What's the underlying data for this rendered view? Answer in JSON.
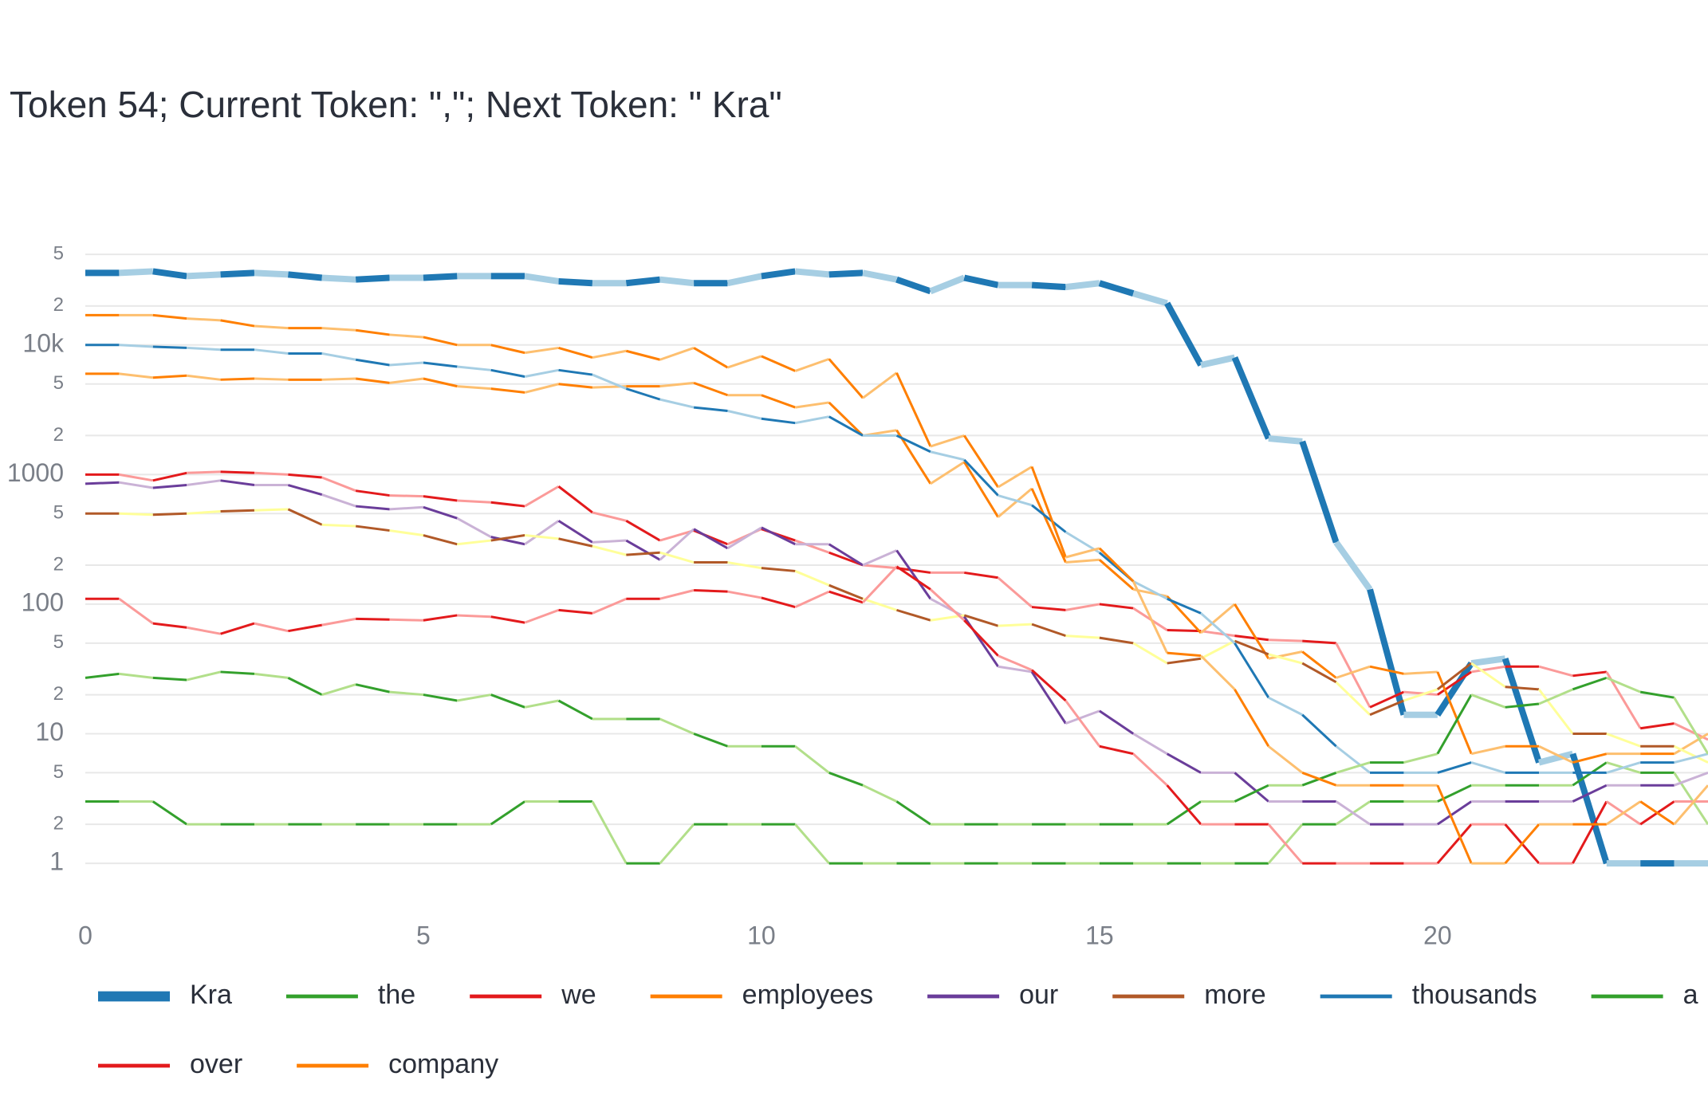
{
  "chart_data": {
    "type": "line",
    "title": "Token 54; Current Token: \",\"; Next Token: \" Kra\"",
    "x": [
      0,
      0.5,
      1,
      1.5,
      2,
      2.5,
      3,
      3.5,
      4,
      4.5,
      5,
      5.5,
      6,
      6.5,
      7,
      7.5,
      8,
      8.5,
      9,
      9.5,
      10,
      10.5,
      11,
      11.5,
      12,
      12.5,
      13,
      13.5,
      14,
      14.5,
      15,
      15.5,
      16,
      16.5,
      17,
      17.5,
      18,
      18.5,
      19,
      19.5,
      20,
      20.5,
      21,
      21.5,
      22,
      22.5,
      23,
      23.5,
      24
    ],
    "xlim": [
      0,
      24
    ],
    "xticks": [
      0,
      5,
      10,
      15,
      20
    ],
    "log_y": true,
    "ylim": [
      0.5,
      80000
    ],
    "yticks": [
      1,
      2,
      5,
      10,
      {
        "value": 20,
        "label": "2"
      },
      {
        "value": 50,
        "label": "5"
      },
      100,
      {
        "value": 200,
        "label": "2"
      },
      {
        "value": 500,
        "label": "5"
      },
      1000,
      {
        "value": 2000,
        "label": "2"
      },
      {
        "value": 5000,
        "label": "5"
      },
      {
        "value": 10000,
        "label": "10k"
      },
      {
        "value": 20000,
        "label": "2"
      },
      {
        "value": 50000,
        "label": "5"
      }
    ],
    "grid": true,
    "series": [
      {
        "name": "Kra",
        "colors": [
          "#1f78b4",
          "#a6cee3"
        ],
        "width": 8,
        "values": [
          36000,
          36000,
          37000,
          34000,
          35000,
          36000,
          35000,
          33000,
          32000,
          33000,
          33000,
          34000,
          34000,
          34000,
          31000,
          30000,
          30000,
          32000,
          30000,
          30000,
          34000,
          37000,
          35000,
          36000,
          32000,
          26000,
          33000,
          29000,
          29000,
          28000,
          30000,
          25000,
          21000,
          7000,
          8000,
          1900,
          1800,
          300,
          130,
          14,
          14,
          35,
          38,
          6,
          7,
          1,
          1,
          1,
          1
        ]
      },
      {
        "name": "the",
        "colors": [
          "#33a02c",
          "#b2df8a"
        ],
        "width": 3,
        "values": [
          3,
          3,
          3,
          2,
          2,
          2,
          2,
          2,
          2,
          2,
          2,
          2,
          2,
          3,
          3,
          3,
          1,
          1,
          2,
          2,
          2,
          2,
          1,
          1,
          1,
          1,
          1,
          1,
          1,
          1,
          1,
          1,
          1,
          1,
          1,
          1,
          2,
          2,
          3,
          3,
          3,
          4,
          4,
          4,
          4,
          6,
          5,
          5,
          2
        ]
      },
      {
        "name": "we",
        "colors": [
          "#e31a1c",
          "#fb9a99"
        ],
        "width": 3,
        "values": [
          1000,
          1000,
          900,
          1030,
          1050,
          1030,
          1000,
          950,
          750,
          690,
          680,
          630,
          610,
          570,
          810,
          510,
          440,
          310,
          370,
          290,
          380,
          310,
          250,
          200,
          190,
          175,
          175,
          160,
          95,
          90,
          100,
          93,
          63,
          62,
          57,
          53,
          52,
          50,
          16,
          21,
          20,
          30,
          33,
          33,
          28,
          30,
          11,
          12,
          9
        ]
      },
      {
        "name": "employees",
        "colors": [
          "#ff7f00",
          "#fdbf6f"
        ],
        "width": 3,
        "values": [
          6000,
          6000,
          5600,
          5800,
          5400,
          5500,
          5400,
          5400,
          5500,
          5100,
          5500,
          4800,
          4600,
          4300,
          5000,
          4700,
          4800,
          4800,
          5100,
          4100,
          4100,
          3300,
          3600,
          2000,
          2200,
          850,
          1250,
          470,
          780,
          210,
          220,
          130,
          115,
          60,
          100,
          38,
          43,
          27,
          33,
          29,
          30,
          7,
          8,
          8,
          6,
          7,
          7,
          7,
          10
        ]
      },
      {
        "name": "our",
        "colors": [
          "#6a3d9a",
          "#cab2d6"
        ],
        "width": 3,
        "values": [
          850,
          870,
          790,
          830,
          900,
          830,
          830,
          700,
          570,
          540,
          560,
          460,
          330,
          290,
          440,
          300,
          310,
          220,
          380,
          270,
          390,
          290,
          290,
          200,
          260,
          110,
          80,
          33,
          30,
          12,
          15,
          10,
          7,
          5,
          5,
          3,
          3,
          3,
          2,
          2,
          2,
          3,
          3,
          3,
          3,
          4,
          4,
          4,
          5
        ]
      },
      {
        "name": "more",
        "colors": [
          "#b15928",
          "#ffff99"
        ],
        "width": 3,
        "values": [
          500,
          500,
          490,
          500,
          520,
          530,
          540,
          410,
          400,
          370,
          340,
          290,
          310,
          340,
          320,
          280,
          240,
          250,
          210,
          210,
          190,
          180,
          140,
          110,
          90,
          75,
          82,
          68,
          70,
          57,
          55,
          50,
          35,
          38,
          52,
          41,
          35,
          25,
          14,
          18,
          22,
          35,
          23,
          22,
          10,
          10,
          8,
          8,
          6
        ]
      },
      {
        "name": "thousands",
        "colors": [
          "#1f78b4",
          "#a6cee3"
        ],
        "width": 3,
        "values": [
          10000,
          10000,
          9700,
          9500,
          9200,
          9200,
          8600,
          8600,
          7700,
          7000,
          7300,
          6800,
          6400,
          5700,
          6400,
          5900,
          4600,
          3800,
          3300,
          3100,
          2700,
          2500,
          2800,
          2000,
          2000,
          1500,
          1300,
          690,
          580,
          360,
          250,
          150,
          110,
          85,
          50,
          19,
          14,
          8,
          5,
          5,
          5,
          6,
          5,
          5,
          5,
          5,
          6,
          6,
          7
        ]
      },
      {
        "name": "a",
        "colors": [
          "#33a02c",
          "#b2df8a"
        ],
        "width": 3,
        "values": [
          27,
          29,
          27,
          26,
          30,
          29,
          27,
          20,
          24,
          21,
          20,
          18,
          20,
          16,
          18,
          13,
          13,
          13,
          10,
          8,
          8,
          8,
          5,
          4,
          3,
          2,
          2,
          2,
          2,
          2,
          2,
          2,
          2,
          3,
          3,
          4,
          4,
          5,
          6,
          6,
          7,
          20,
          16,
          17,
          22,
          27,
          21,
          19,
          7
        ]
      },
      {
        "name": "over",
        "colors": [
          "#e31a1c",
          "#fb9a99"
        ],
        "width": 3,
        "values": [
          110,
          110,
          71,
          66,
          59,
          71,
          62,
          69,
          77,
          76,
          75,
          82,
          80,
          72,
          90,
          85,
          110,
          110,
          128,
          125,
          112,
          95,
          125,
          103,
          195,
          130,
          75,
          40,
          31,
          18,
          8,
          7,
          4,
          2,
          2,
          2,
          1,
          1,
          1,
          1,
          1,
          2,
          2,
          1,
          1,
          3,
          2,
          3,
          3
        ]
      },
      {
        "name": "company",
        "colors": [
          "#ff7f00",
          "#fdbf6f"
        ],
        "width": 3,
        "values": [
          17000,
          17000,
          17000,
          16000,
          15500,
          14000,
          13500,
          13500,
          13000,
          12000,
          11500,
          10000,
          10000,
          8700,
          9500,
          8000,
          9000,
          7700,
          9500,
          6700,
          8200,
          6300,
          7800,
          3900,
          6100,
          1650,
          2000,
          800,
          1150,
          230,
          270,
          150,
          42,
          40,
          22,
          8,
          5,
          4,
          4,
          4,
          4,
          1,
          1,
          2,
          2,
          2,
          3,
          2,
          4
        ]
      }
    ]
  }
}
